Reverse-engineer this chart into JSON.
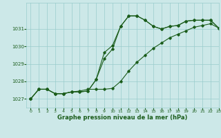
{
  "xlabel": "Graphe pression niveau de la mer (hPa)",
  "xlim": [
    -0.5,
    23
  ],
  "ylim": [
    1026.5,
    1032.5
  ],
  "yticks": [
    1027,
    1028,
    1029,
    1030,
    1031
  ],
  "xticks": [
    0,
    1,
    2,
    3,
    4,
    5,
    6,
    7,
    8,
    9,
    10,
    11,
    12,
    13,
    14,
    15,
    16,
    17,
    18,
    19,
    20,
    21,
    22,
    23
  ],
  "background_color": "#cce8e8",
  "plot_bg_color": "#cce8e8",
  "grid_color": "#99cccc",
  "line_color": "#1a5c1a",
  "line1": [
    1027.0,
    1027.55,
    1027.55,
    1027.3,
    1027.3,
    1027.4,
    1027.4,
    1027.45,
    1028.1,
    1029.65,
    1030.05,
    1031.15,
    1031.75,
    1031.75,
    1031.5,
    1031.15,
    1031.0,
    1031.15,
    1031.2,
    1031.45,
    1031.5,
    1031.5,
    1031.5,
    1031.05
  ],
  "line2": [
    1027.0,
    1027.55,
    1027.55,
    1027.3,
    1027.3,
    1027.4,
    1027.45,
    1027.55,
    1027.55,
    1027.55,
    1027.6,
    1028.0,
    1028.6,
    1029.1,
    1029.5,
    1029.9,
    1030.2,
    1030.5,
    1030.7,
    1030.9,
    1031.1,
    1031.2,
    1031.3,
    1031.05
  ],
  "line3": [
    1027.0,
    1027.55,
    1027.55,
    1027.3,
    1027.3,
    1027.4,
    1027.4,
    1027.45,
    1028.1,
    1029.3,
    1029.85,
    1031.15,
    1031.75,
    1031.75,
    1031.5,
    1031.15,
    1031.0,
    1031.15,
    1031.2,
    1031.45,
    1031.5,
    1031.5,
    1031.5,
    1031.05
  ]
}
